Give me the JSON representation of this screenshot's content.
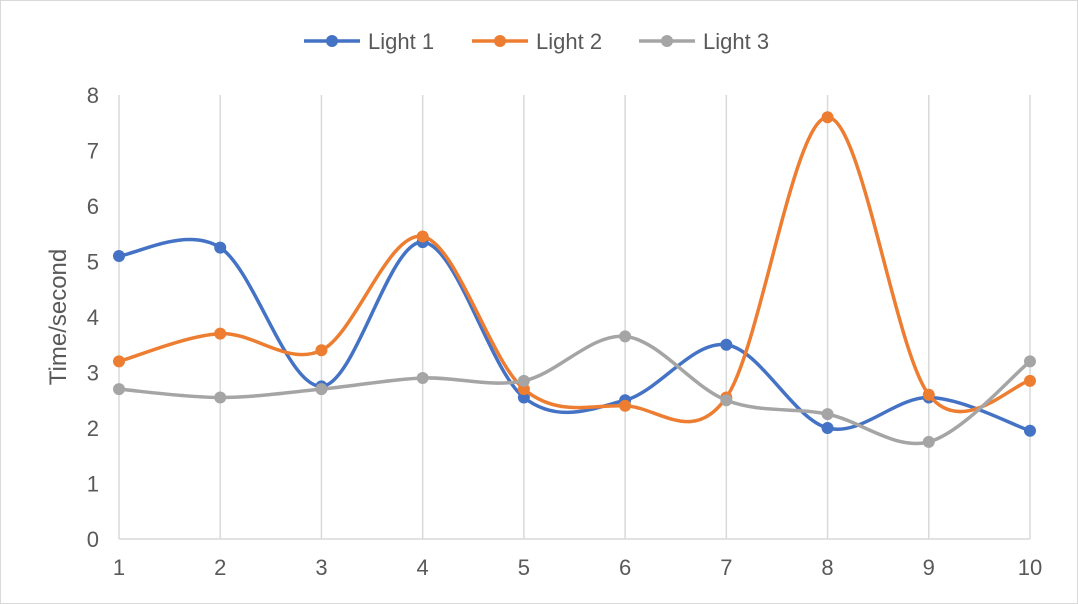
{
  "chart_data": {
    "type": "line",
    "smooth": true,
    "x": [
      "1",
      "2",
      "3",
      "4",
      "5",
      "6",
      "7",
      "8",
      "9",
      "10"
    ],
    "ylabel": "Time/second",
    "xlabel": "",
    "title": "",
    "ylim": [
      0,
      8
    ],
    "yticks": [
      "0",
      "1",
      "2",
      "3",
      "4",
      "5",
      "6",
      "7",
      "8"
    ],
    "grid": "vertical",
    "legend_position": "top",
    "series": [
      {
        "name": "Light 1",
        "color": "#4472c4",
        "values": [
          5.1,
          5.25,
          2.75,
          5.35,
          2.55,
          2.5,
          3.5,
          2.0,
          2.55,
          1.95
        ]
      },
      {
        "name": "Light 2",
        "color": "#ed7d31",
        "values": [
          3.2,
          3.7,
          3.4,
          5.45,
          2.7,
          2.4,
          2.55,
          7.6,
          2.6,
          2.85
        ]
      },
      {
        "name": "Light 3",
        "color": "#a5a5a5",
        "values": [
          2.7,
          2.55,
          2.7,
          2.9,
          2.85,
          3.65,
          2.5,
          2.25,
          1.75,
          3.2
        ]
      }
    ]
  }
}
